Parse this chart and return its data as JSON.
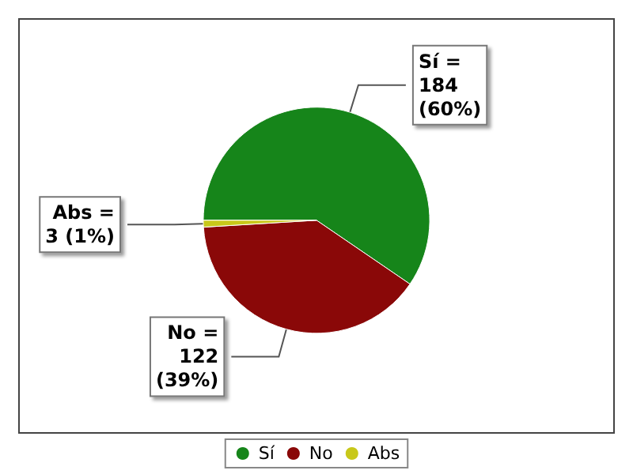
{
  "chart_data": {
    "type": "pie",
    "categories": [
      "Sí",
      "No",
      "Abs"
    ],
    "values": [
      184,
      122,
      3
    ],
    "colors": [
      "#16851a",
      "#8a0808",
      "#c8c81a"
    ],
    "value_labels": [
      "Sí =\n184\n(60%)",
      "No =\n122\n(39%)",
      "Abs =\n3 (1%)"
    ],
    "legend": "bottom"
  }
}
